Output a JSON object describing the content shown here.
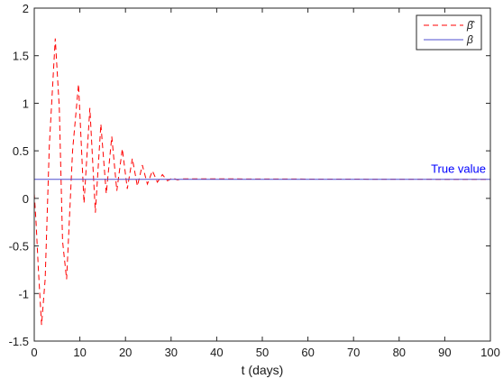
{
  "chart_data": {
    "type": "line",
    "xlabel": "t (days)",
    "ylabel": "",
    "xlim": [
      0,
      100
    ],
    "ylim": [
      -1.5,
      2
    ],
    "xticks": [
      0,
      10,
      20,
      30,
      40,
      50,
      60,
      70,
      80,
      90,
      100
    ],
    "yticks": [
      -1.5,
      -1,
      -0.5,
      0,
      0.5,
      1,
      1.5,
      2
    ],
    "grid": false,
    "legend_position": "top-right",
    "annotation": {
      "text": "True value",
      "x": 92,
      "y": 0.23,
      "color": "#0000ff"
    },
    "series": [
      {
        "name": "β̂",
        "color": "#ff0000",
        "style": "dashed",
        "x": [
          0,
          0.4,
          0.9,
          1.6,
          2.4,
          3.3,
          4.6,
          5.5,
          6.2,
          7.1,
          8.4,
          9.7,
          10.9,
          12.2,
          13.4,
          14.6,
          15.8,
          17.0,
          18.1,
          19.3,
          20.4,
          21.5,
          22.6,
          23.7,
          24.8,
          25.9,
          27.0,
          28.1,
          29.2,
          30.3,
          31.4,
          32.5,
          100
        ],
        "y": [
          0.05,
          -0.25,
          -0.75,
          -1.33,
          -0.85,
          0.55,
          1.68,
          0.95,
          -0.45,
          -0.85,
          0.5,
          1.2,
          -0.05,
          0.95,
          -0.15,
          0.78,
          0.05,
          0.65,
          0.08,
          0.52,
          0.1,
          0.42,
          0.13,
          0.35,
          0.15,
          0.29,
          0.17,
          0.25,
          0.185,
          0.215,
          0.195,
          0.205,
          0.2
        ]
      },
      {
        "name": "β",
        "color": "#4f4fcf",
        "style": "solid",
        "x": [
          0,
          100
        ],
        "y": [
          0.2,
          0.2
        ]
      }
    ]
  }
}
